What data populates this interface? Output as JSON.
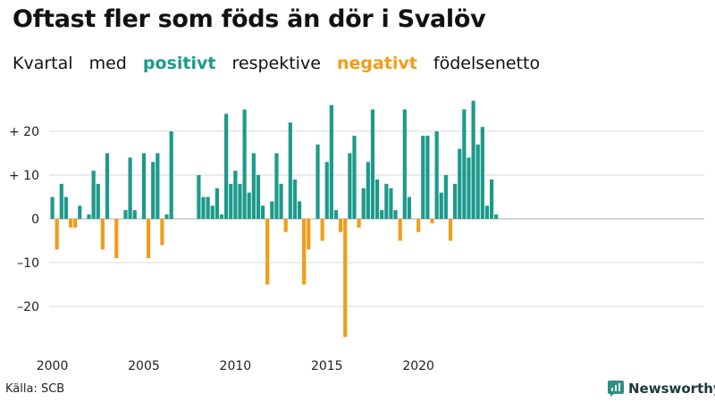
{
  "header": {
    "title": "Oftast fler som föds än dör i Svalöv",
    "subtitle": {
      "w1": "Kvartal",
      "w2": "med",
      "positive": "positivt",
      "w3": "respektive",
      "negative": "negativt",
      "w4": "födelsenetto"
    }
  },
  "footer": {
    "source": "Källa: SCB",
    "brand": "Newsworthy",
    "brand_icon": "newsworthy-logo-icon"
  },
  "colors": {
    "positive": "#1c9a8b",
    "negative": "#f39c18",
    "grid": "#d9d9d9",
    "text": "#111111"
  },
  "chart_data": {
    "type": "bar",
    "title": "Oftast fler som föds än dör i Svalöv",
    "xlabel": "",
    "ylabel": "",
    "ylim": [
      -28,
      28
    ],
    "start_year": 2000,
    "quarters_per_year": 4,
    "y_ticks": [
      {
        "value": 20,
        "label": "+ 20"
      },
      {
        "value": 10,
        "label": "+ 10"
      },
      {
        "value": 0,
        "label": "0"
      },
      {
        "value": -10,
        "label": "–10"
      },
      {
        "value": -20,
        "label": "–20"
      }
    ],
    "x_ticks": [
      {
        "year": 2000,
        "label": "2000"
      },
      {
        "year": 2005,
        "label": "2005"
      },
      {
        "year": 2010,
        "label": "2010"
      },
      {
        "year": 2015,
        "label": "2015"
      },
      {
        "year": 2020,
        "label": "2020"
      }
    ],
    "values": [
      5,
      -7,
      8,
      5,
      -2,
      -2,
      3,
      0,
      1,
      11,
      8,
      -7,
      15,
      0,
      -9,
      0,
      2,
      14,
      2,
      0,
      15,
      -9,
      13,
      15,
      -6,
      1,
      20,
      0,
      0,
      0,
      0,
      0,
      10,
      5,
      5,
      3,
      7,
      1,
      24,
      8,
      11,
      8,
      25,
      6,
      15,
      10,
      3,
      -15,
      4,
      15,
      8,
      -3,
      22,
      9,
      4,
      -15,
      -7,
      0,
      17,
      -5,
      13,
      26,
      2,
      -3,
      -27,
      15,
      19,
      -2,
      7,
      13,
      25,
      9,
      2,
      8,
      7,
      2,
      -5,
      25,
      5,
      0,
      -3,
      19,
      19,
      -1,
      20,
      6,
      10,
      -5,
      8,
      16,
      25,
      14,
      27,
      17,
      21,
      3,
      9,
      1
    ]
  }
}
